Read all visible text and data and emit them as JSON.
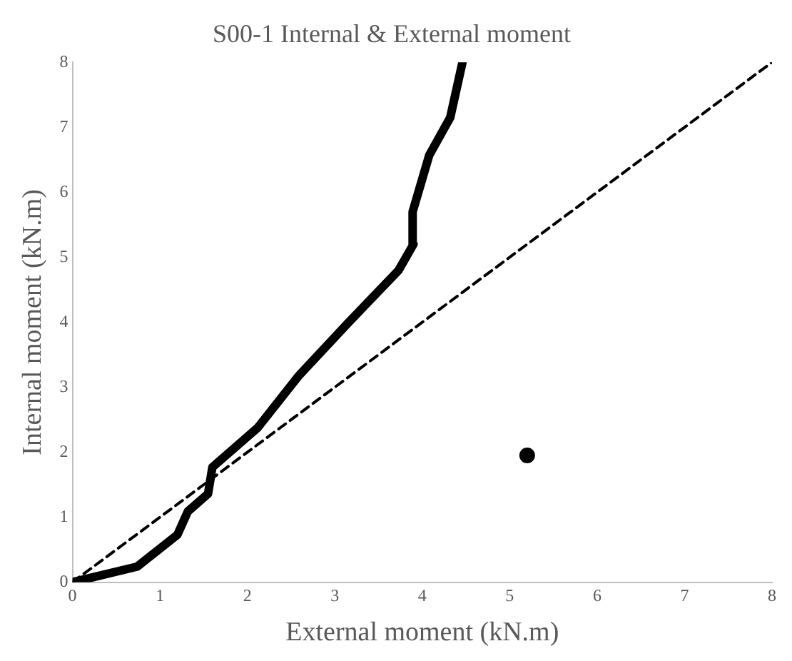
{
  "chart_data": {
    "type": "line",
    "title": "S00-1 Internal & External moment",
    "xlabel": "External moment (kN.m)",
    "ylabel": "Internal moment (kN.m)",
    "xlim": [
      0,
      8
    ],
    "ylim": [
      0,
      8
    ],
    "xticks": [
      0,
      1,
      2,
      3,
      4,
      5,
      6,
      7,
      8
    ],
    "yticks": [
      0,
      1,
      2,
      3,
      4,
      5,
      6,
      7,
      8
    ],
    "grid": false,
    "legend": false,
    "marker": "none",
    "series": [
      {
        "color": "#000000",
        "x": [
          0,
          0.74,
          1.2,
          1.32,
          1.55,
          1.6,
          2.12,
          2.59,
          3.16,
          3.73,
          3.9,
          3.89,
          4.08,
          4.32,
          4.46
        ],
        "values": [
          0,
          0.24,
          0.73,
          1.09,
          1.36,
          1.77,
          2.38,
          3.18,
          4.0,
          4.8,
          5.2,
          5.7,
          6.57,
          7.15,
          8.0
        ]
      },
      {
        "color": "#000000",
        "line_style": "dashed",
        "x": [
          0,
          8
        ],
        "values": [
          0,
          8
        ]
      },
      {
        "type": "scatter",
        "color": "#000000",
        "marker": "circle",
        "x": [
          5.2
        ],
        "values": [
          1.95
        ]
      }
    ]
  }
}
